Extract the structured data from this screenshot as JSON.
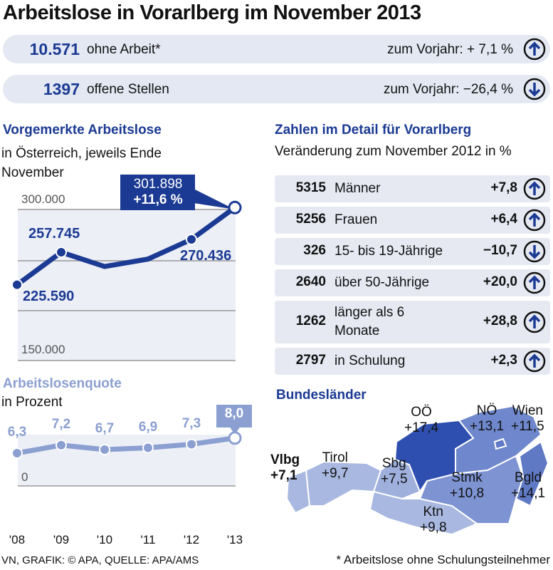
{
  "title": "Arbeitslose in Vorarlberg im November 2013",
  "kpis": [
    {
      "value": "10.571",
      "label": "ohne Arbeit*",
      "change": "zum Vorjahr: + 7,1 %",
      "icon": "arrow-up-icon"
    },
    {
      "value": "1397",
      "label": "offene Stellen",
      "change": "zum Vorjahr: −26,4 %",
      "icon": "arrow-down-icon"
    }
  ],
  "left": {
    "heading": "Vorgemerkte Arbeitslose",
    "subheading": "in Österreich, jeweils Ende November",
    "quote_heading": "Arbeitslosenquote",
    "quote_sub": "in Prozent"
  },
  "right": {
    "heading": "Zahlen im Detail für Vorarlberg",
    "subheading": "Veränderung zum November 2012 in %",
    "rows": [
      {
        "value": "5315",
        "label": "Männer",
        "change": "+7,8",
        "dir": "up"
      },
      {
        "value": "5256",
        "label": "Frauen",
        "change": "+6,4",
        "dir": "up"
      },
      {
        "value": "326",
        "label": "15- bis 19-Jährige",
        "change": "−10,7",
        "dir": "down"
      },
      {
        "value": "2640",
        "label": "über 50-Jährige",
        "change": "+20,0",
        "dir": "up"
      },
      {
        "value": "1262",
        "label": "länger als 6 Monate",
        "change": "+28,8",
        "dir": "up"
      },
      {
        "value": "2797",
        "label": "in Schulung",
        "change": "+2,3",
        "dir": "up"
      }
    ]
  },
  "map": {
    "heading": "Bundesländer",
    "states": [
      {
        "name": "Vlbg",
        "value": "+7,1"
      },
      {
        "name": "Tirol",
        "value": "+9,7"
      },
      {
        "name": "Sbg",
        "value": "+7,5"
      },
      {
        "name": "OÖ",
        "value": "+17,4"
      },
      {
        "name": "NÖ",
        "value": "+13,1"
      },
      {
        "name": "Wien",
        "value": "+11,5"
      },
      {
        "name": "Stmk",
        "value": "+10,8"
      },
      {
        "name": "Bgld",
        "value": "+14,1"
      },
      {
        "name": "Ktn",
        "value": "+9,8"
      }
    ]
  },
  "colors": {
    "dark": "#1b3a93",
    "light": "#8b9fd1",
    "panel": "#e3e8f3"
  },
  "chart_data": [
    {
      "type": "line",
      "title": "Vorgemerkte Arbeitslose",
      "subtitle": "in Österreich, jeweils Ende November",
      "categories": [
        "'08",
        "'09",
        "'10",
        "'11",
        "'12",
        "'13"
      ],
      "values": [
        225590,
        257745,
        243600,
        251000,
        270436,
        301898
      ],
      "data_labels": [
        "225.590",
        "257.745",
        "",
        "",
        "270.436",
        "301.898"
      ],
      "annotation": "+11,6 %",
      "tick_labels": [
        "300.000",
        "150.000"
      ],
      "ylim": [
        150000,
        300000
      ],
      "grid": true
    },
    {
      "type": "line",
      "title": "Arbeitslosenquote",
      "subtitle": "in Prozent",
      "categories": [
        "'08",
        "'09",
        "'10",
        "'11",
        "'12",
        "'13"
      ],
      "values": [
        6.3,
        7.2,
        6.7,
        6.9,
        7.3,
        8.0
      ],
      "data_labels": [
        "6,3",
        "7,2",
        "6,7",
        "6,9",
        "7,3",
        "8,0"
      ],
      "tick_labels": [
        "0"
      ]
    }
  ],
  "footer": {
    "source": "VN, GRAFIK: © APA, QUELLE: APA/AMS",
    "note": "* Arbeitslose ohne Schulungsteilnehmer"
  }
}
